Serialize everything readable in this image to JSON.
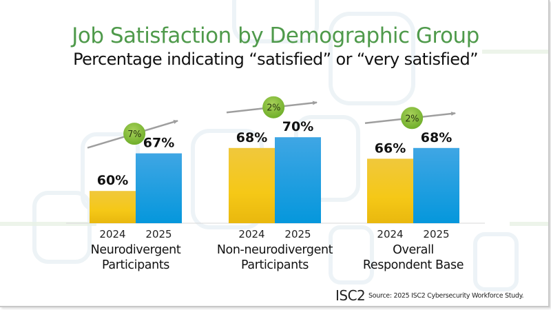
{
  "slide": {
    "title": "Job Satisfaction by Demographic Group",
    "subtitle": "Percentage indicating “satisfied” or “very satisfied”",
    "logo": "ISC2",
    "source": "Source: 2025 ISC2 Cybersecurity Workforce Study."
  },
  "colors": {
    "title": "#4f9a4b",
    "bar_2024": "#f2c21b",
    "bar_2025": "#1d9be0",
    "badge": "#86bf3a",
    "arrow": "#9e9e9e"
  },
  "chart_data": {
    "type": "bar",
    "title": "Job Satisfaction by Demographic Group",
    "subtitle": "Percentage indicating “satisfied” or “very satisfied”",
    "xlabel": "",
    "ylabel": "",
    "ylim": [
      54,
      72
    ],
    "grid": false,
    "legend": "none",
    "categories": [
      [
        "Neurodivergent",
        "Participants"
      ],
      [
        "Non-neurodivergent",
        "Participants"
      ],
      [
        "Overall",
        "Respondent Base"
      ]
    ],
    "series": [
      {
        "name": "2024",
        "values": [
          60,
          68,
          66
        ],
        "labels": [
          "60%",
          "68%",
          "66%"
        ]
      },
      {
        "name": "2025",
        "values": [
          67,
          70,
          68
        ],
        "labels": [
          "67%",
          "70%",
          "68%"
        ]
      }
    ],
    "annotations": [
      {
        "group": 0,
        "text": "7%",
        "meaning": "increase 2024 to 2025"
      },
      {
        "group": 1,
        "text": "2%",
        "meaning": "increase 2024 to 2025"
      },
      {
        "group": 2,
        "text": "2%",
        "meaning": "increase 2024 to 2025"
      }
    ]
  }
}
